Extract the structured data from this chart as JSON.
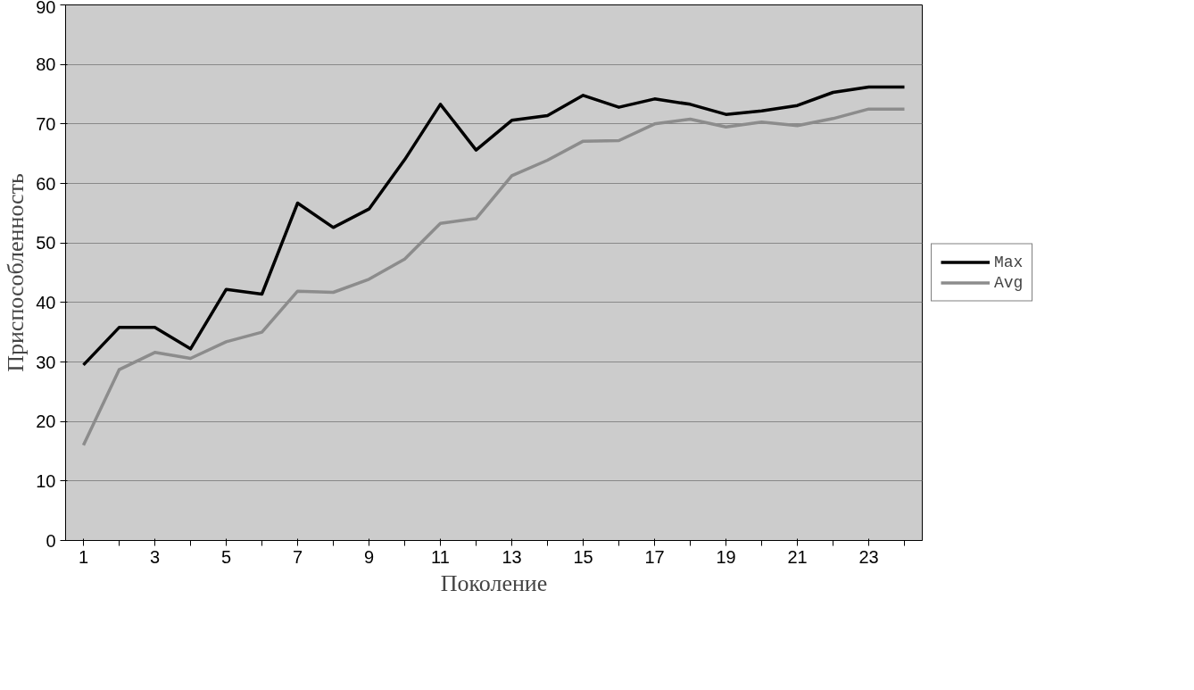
{
  "chart_data": {
    "type": "line",
    "xlabel": "Поколение",
    "ylabel": "Приспособленность",
    "x": [
      1,
      2,
      3,
      4,
      5,
      6,
      7,
      8,
      9,
      10,
      11,
      12,
      13,
      14,
      15,
      16,
      17,
      18,
      19,
      20,
      21,
      22,
      23,
      24
    ],
    "xlim": [
      0.5,
      24.5
    ],
    "xticks": [
      1,
      {
        "value": 2,
        "label": null
      },
      3,
      {
        "value": 4,
        "label": null
      },
      5,
      {
        "value": 6,
        "label": null
      },
      7,
      {
        "value": 8,
        "label": null
      },
      9,
      {
        "value": 10,
        "label": null
      },
      11,
      {
        "value": 12,
        "label": null
      },
      13,
      {
        "value": 14,
        "label": null
      },
      15,
      {
        "value": 16,
        "label": null
      },
      17,
      {
        "value": 18,
        "label": null
      },
      19,
      {
        "value": 20,
        "label": null
      },
      21,
      {
        "value": 22,
        "label": null
      },
      23,
      {
        "value": 24,
        "label": null
      }
    ],
    "series": [
      {
        "name": "Max",
        "color": "#000000",
        "values": [
          29.5,
          35.8,
          35.8,
          32.2,
          42.2,
          41.4,
          56.7,
          52.6,
          55.7,
          64,
          73.3,
          65.6,
          70.6,
          71.4,
          74.8,
          72.8,
          74.2,
          73.3,
          71.6,
          72.2,
          73.1,
          75.3,
          76.2,
          76.2
        ]
      },
      {
        "name": "Avg",
        "color": "#8c8c8c",
        "values": [
          16,
          28.7,
          31.6,
          30.6,
          33.4,
          35,
          41.9,
          41.7,
          43.9,
          47.3,
          53.3,
          54.1,
          61.3,
          63.9,
          67.1,
          67.2,
          70,
          70.8,
          69.5,
          70.3,
          69.7,
          70.9,
          72.5,
          72.5
        ]
      }
    ],
    "ylim": [
      0,
      90
    ],
    "yticks": [
      0,
      10,
      20,
      30,
      40,
      50,
      60,
      70,
      80,
      90
    ],
    "grid": "y",
    "legend": "right",
    "marker": "none",
    "line_style": "solid"
  }
}
